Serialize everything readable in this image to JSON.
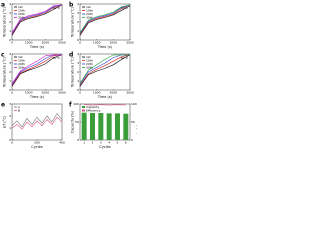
{
  "chart_data": [
    {
      "type": "line",
      "panel": "a",
      "x_label": "Time (s)",
      "y_label": "Temperature (°C)",
      "annotation": "60°C",
      "x": [
        0,
        500,
        1000,
        1500,
        2000,
        2500,
        3000
      ],
      "xlim": [
        0,
        3000
      ],
      "xticks": [
        0,
        1000,
        2000,
        3000
      ],
      "ylim": [
        0,
        4
      ],
      "yticks": [
        0,
        1,
        2,
        3,
        4
      ],
      "series": [
        {
          "name": "1st",
          "color": "#000000",
          "values": [
            0.5,
            2.0,
            2.4,
            2.6,
            2.9,
            3.4,
            3.9
          ]
        },
        {
          "name": "10th",
          "color": "#e02020",
          "values": [
            0.6,
            2.1,
            2.5,
            2.7,
            3.0,
            3.6,
            3.9
          ]
        },
        {
          "name": "20th",
          "color": "#2040e0",
          "values": [
            0.7,
            2.2,
            2.6,
            2.8,
            3.1,
            3.7,
            3.9
          ]
        },
        {
          "name": "30th",
          "color": "#d020d0",
          "values": [
            0.8,
            2.3,
            2.7,
            2.9,
            3.2,
            3.8,
            3.9
          ]
        }
      ]
    },
    {
      "type": "line",
      "panel": "b",
      "x_label": "Time (s)",
      "y_label": "Temperature (°C)",
      "annotation": "60°C",
      "x": [
        0,
        500,
        1000,
        1500,
        2000,
        2500,
        3000
      ],
      "xlim": [
        0,
        3000
      ],
      "xticks": [
        0,
        1000,
        2000,
        3000
      ],
      "ylim": [
        0,
        4
      ],
      "yticks": [
        0,
        1,
        2,
        3,
        4
      ],
      "series": [
        {
          "name": "1st",
          "color": "#000000",
          "values": [
            0.5,
            1.9,
            2.3,
            2.5,
            2.8,
            3.3,
            3.8
          ]
        },
        {
          "name": "10th",
          "color": "#e02020",
          "values": [
            0.6,
            2.0,
            2.4,
            2.6,
            2.9,
            3.5,
            3.9
          ]
        },
        {
          "name": "20th",
          "color": "#2040e0",
          "values": [
            0.7,
            2.1,
            2.5,
            2.7,
            3.0,
            3.6,
            3.9
          ]
        },
        {
          "name": "30th",
          "color": "#20a040",
          "values": [
            0.8,
            2.2,
            2.6,
            2.8,
            3.1,
            3.7,
            3.9
          ]
        }
      ]
    },
    {
      "type": "line",
      "panel": "c",
      "x_label": "Time (s)",
      "y_label": "Temperature (°C)",
      "annotation": "60°C",
      "x": [
        0,
        500,
        1000,
        1500,
        2000,
        2500,
        3000
      ],
      "xlim": [
        0,
        3000
      ],
      "xticks": [
        0,
        1000,
        2000,
        3000
      ],
      "ylim": [
        0,
        4
      ],
      "yticks": [
        0,
        1,
        2,
        3,
        4
      ],
      "series": [
        {
          "name": "1st",
          "color": "#000000",
          "values": [
            0.4,
            1.8,
            2.2,
            2.5,
            2.9,
            3.6,
            3.9
          ]
        },
        {
          "name": "10th",
          "color": "#e02020",
          "values": [
            0.5,
            1.9,
            2.3,
            2.7,
            3.2,
            3.8,
            3.9
          ]
        },
        {
          "name": "20th",
          "color": "#2040e0",
          "values": [
            0.6,
            2.0,
            2.5,
            2.9,
            3.5,
            3.9,
            3.9
          ]
        },
        {
          "name": "30th",
          "color": "#d020d0",
          "values": [
            0.7,
            2.1,
            2.7,
            3.2,
            3.8,
            3.9,
            3.9
          ]
        }
      ]
    },
    {
      "type": "line",
      "panel": "d",
      "x_label": "Time (s)",
      "y_label": "Temperature (°C)",
      "annotation": "60°C",
      "x": [
        0,
        500,
        1000,
        1500,
        2000,
        2500,
        3000
      ],
      "xlim": [
        0,
        3000
      ],
      "xticks": [
        0,
        1000,
        2000,
        3000
      ],
      "ylim": [
        0,
        4
      ],
      "yticks": [
        0,
        1,
        2,
        3,
        4
      ],
      "series": [
        {
          "name": "1st",
          "color": "#000000",
          "values": [
            0.4,
            1.7,
            2.1,
            2.4,
            2.8,
            3.4,
            3.9
          ]
        },
        {
          "name": "10th",
          "color": "#e02020",
          "values": [
            0.5,
            1.8,
            2.3,
            2.7,
            3.2,
            3.7,
            3.9
          ]
        },
        {
          "name": "20th",
          "color": "#2040e0",
          "values": [
            0.6,
            2.0,
            2.5,
            3.0,
            3.6,
            3.9,
            3.9
          ]
        },
        {
          "name": "30th",
          "color": "#20a040",
          "values": [
            0.7,
            2.2,
            2.8,
            3.4,
            3.9,
            3.9,
            3.9
          ]
        }
      ]
    },
    {
      "type": "line",
      "panel": "e",
      "x_label": "Cycles",
      "y_label": "ΔT (°C)",
      "x": [
        0,
        40,
        80,
        120,
        160,
        200,
        240,
        280,
        320,
        360,
        400
      ],
      "xlim": [
        0,
        400
      ],
      "xticks": [
        0,
        200,
        400
      ],
      "ylim": [
        0,
        3
      ],
      "yticks": [
        0,
        1,
        2,
        3
      ],
      "series": [
        {
          "name": "A",
          "color": "#777777",
          "values": [
            1.2,
            1.6,
            1.1,
            1.8,
            1.3,
            1.9,
            1.4,
            2.0,
            1.5,
            2.2,
            1.7
          ]
        },
        {
          "name": "B",
          "color": "#e0508a",
          "values": [
            1.0,
            1.3,
            0.9,
            1.5,
            1.1,
            1.6,
            1.2,
            1.7,
            1.3,
            1.9,
            1.5
          ]
        }
      ]
    },
    {
      "type": "bar",
      "panel": "f",
      "x_label": "Cycles",
      "y_label": "Capacity (%)",
      "y2_label": "Efficiency (%)",
      "categories": [
        "1",
        "2",
        "3",
        "4",
        "5",
        "6"
      ],
      "ylim": [
        0,
        100
      ],
      "yticks": [
        0,
        50,
        100
      ],
      "y2lim": [
        0,
        100
      ],
      "y2ticks": [
        0,
        50,
        100
      ],
      "series": [
        {
          "name": "Capacity",
          "color": "#3a9d3a",
          "values": [
            76,
            75,
            75,
            74,
            74,
            73
          ]
        },
        {
          "name": "Efficiency",
          "color": "#e0508a",
          "values": [
            98,
            97,
            98,
            97,
            98,
            97
          ],
          "axis": "y2"
        }
      ]
    }
  ]
}
